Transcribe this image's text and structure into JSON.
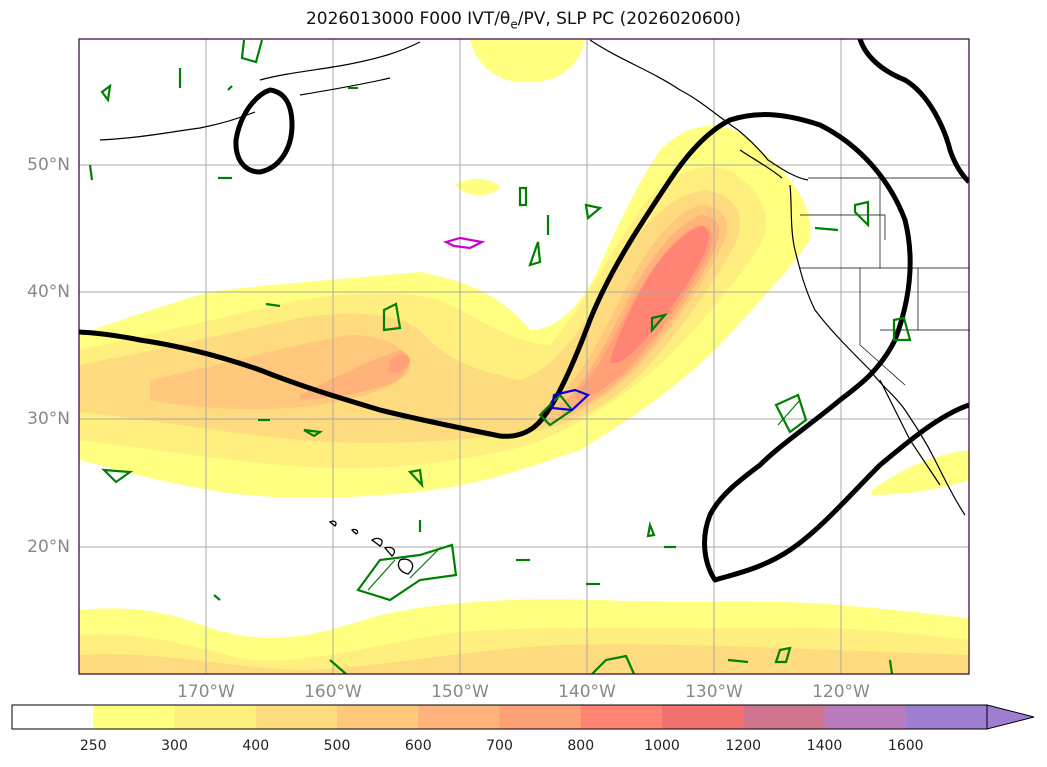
{
  "title": "2026013000 F000 IVT/θe/PV, SLP PC (2026020600)",
  "map": {
    "projection": "plate-carree",
    "extent": {
      "lon": [
        -180,
        -110
      ],
      "lat": [
        10,
        60
      ]
    },
    "gridlines": true,
    "lat_ticks": [
      {
        "value": 20,
        "label": "20°N"
      },
      {
        "value": 30,
        "label": "30°N"
      },
      {
        "value": 40,
        "label": "40°N"
      },
      {
        "value": 50,
        "label": "50°N"
      }
    ],
    "lon_ticks": [
      {
        "value": -170,
        "label": "170°W"
      },
      {
        "value": -160,
        "label": "160°W"
      },
      {
        "value": -150,
        "label": "150°W"
      },
      {
        "value": -140,
        "label": "140°W"
      },
      {
        "value": -130,
        "label": "130°W"
      },
      {
        "value": -120,
        "label": "120°W"
      }
    ]
  },
  "colorbar": {
    "levels": [
      "250",
      "300",
      "400",
      "500",
      "600",
      "700",
      "800",
      "1000",
      "1200",
      "1400",
      "1600"
    ],
    "colors": [
      "#ffffff",
      "#ffff80",
      "#ffef7f",
      "#ffdb7f",
      "#ffc87c",
      "#ffb27a",
      "#ffa077",
      "#ff8474",
      "#f27272",
      "#d1758e",
      "#b87cbc",
      "#9e7ed0"
    ],
    "extend": "max"
  },
  "colors": {
    "slp_contour": "#000000",
    "pv_contour": "#008000",
    "theta_e_contour": "#cc00cc",
    "blue_contour": "#0000dd",
    "gridline": "#aaaaaa",
    "frame": "#2a0030"
  }
}
